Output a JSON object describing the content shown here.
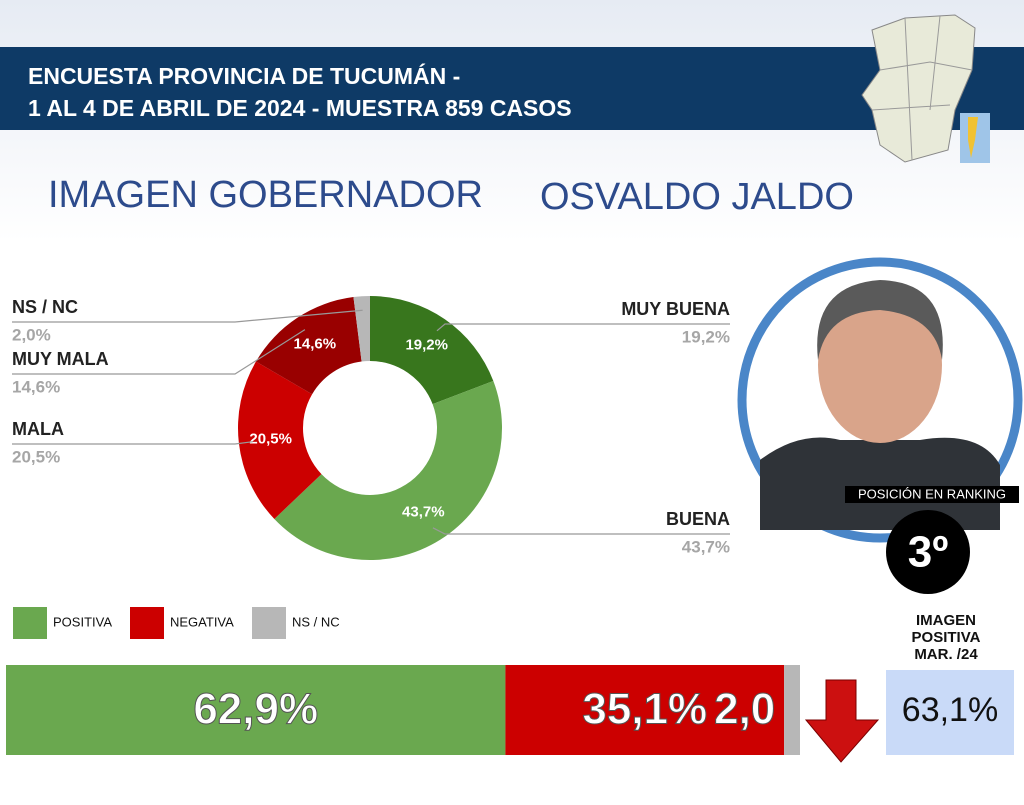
{
  "header": {
    "line1": "ENCUESTA PROVINCIA DE TUCUMÁN -",
    "line2": "1 AL 4 DE ABRIL DE 2024 - MUESTRA 859 CASOS"
  },
  "title": "IMAGEN GOBERNADOR",
  "subtitle": "OSVALDO JALDO",
  "ranking": {
    "label": "POSICIÓN EN RANKING",
    "position": "3º"
  },
  "previous": {
    "label": "IMAGEN POSITIVA MAR. /24",
    "value": "63,1%"
  },
  "chart_data": [
    {
      "type": "pie",
      "donut": true,
      "categories": [
        "MUY BUENA",
        "BUENA",
        "MALA",
        "MUY MALA",
        "NS / NC"
      ],
      "values": [
        19.2,
        43.7,
        20.5,
        14.6,
        2.0
      ],
      "value_labels": [
        "19,2%",
        "43,7%",
        "20,5%",
        "14,6%",
        "2,0%"
      ],
      "colors": [
        "#38761d",
        "#6aa84f",
        "#cc0000",
        "#990000",
        "#b7b7b7"
      ]
    },
    {
      "type": "bar",
      "orientation": "horizontal",
      "stacked": true,
      "xlim": [
        0,
        100
      ],
      "series": [
        {
          "name": "POSITIVA",
          "color": "#6aa84f",
          "values": [
            62.9
          ],
          "value_labels": [
            "62,9%"
          ]
        },
        {
          "name": "NEGATIVA",
          "color": "#cc0000",
          "values": [
            35.1
          ],
          "value_labels": [
            "35,1%"
          ]
        },
        {
          "name": "NS / NC",
          "color": "#b7b7b7",
          "values": [
            2.0
          ],
          "value_labels": [
            "2,0"
          ]
        }
      ]
    }
  ]
}
